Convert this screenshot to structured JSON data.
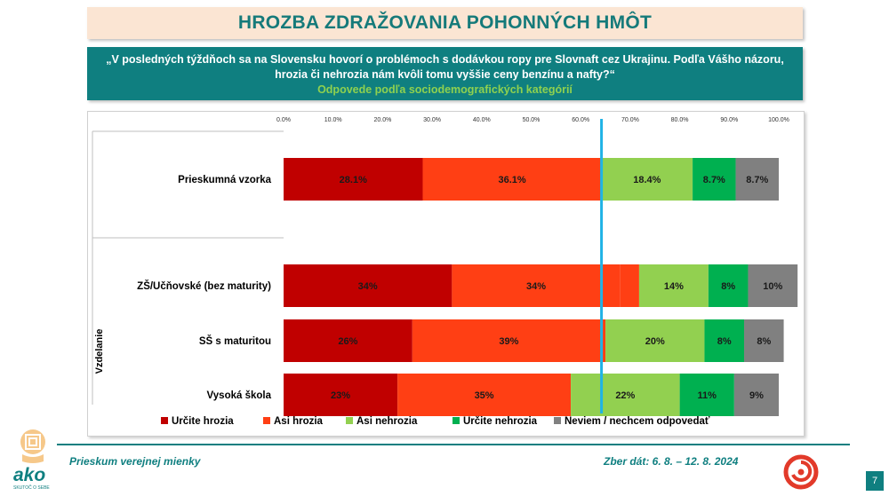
{
  "header": {
    "title": "HROZBA ZDRAŽOVANIA POHONNÝCH HMÔT",
    "question_line1": "„V posledných týždňoch sa na Slovensku hovorí o problémoch s dodávkou ropy pre Slovnaft cez Ukrajinu. Podľa Vášho názoru,",
    "question_line2": "hrozia či nehrozia nám kvôli tomu vyššie ceny benzínu a nafty?“",
    "subtitle": "Odpovede podľa sociodemografických kategórií"
  },
  "chart_data": {
    "type": "bar",
    "orientation": "horizontal",
    "stacked": true,
    "x_ticks": [
      "0.0%",
      "10.0%",
      "20.0%",
      "30.0%",
      "40.0%",
      "50.0%",
      "60.0%",
      "70.0%",
      "80.0%",
      "90.0%",
      "100.0%"
    ],
    "xlim": [
      0,
      100
    ],
    "reference_line": 64.2,
    "group_label": "Vzdelanie",
    "categories": [
      "Prieskumná vzorka",
      "ZŠ/Učňovské (bez maturity)",
      "SŠ s maturitou",
      "Vysoká škola"
    ],
    "series": [
      {
        "name": "Určite hrozia",
        "color": "#c00000",
        "values": [
          28.1,
          34,
          26,
          23
        ],
        "labels": [
          "28.1%",
          "34%",
          "26%",
          "23%"
        ]
      },
      {
        "name": "Asi hrozia",
        "color": "#ff3f14",
        "values": [
          36.1,
          34,
          39,
          35
        ],
        "labels": [
          "36.1%",
          "34%",
          "39%",
          "35%"
        ]
      },
      {
        "name": "Asi nehrozia",
        "color": "#92d050",
        "values": [
          18.4,
          14,
          20,
          22
        ],
        "labels": [
          "18.4%",
          "14%",
          "20%",
          "22%"
        ]
      },
      {
        "name": "Určite nehrozia",
        "color": "#00b050",
        "values": [
          8.7,
          8,
          8,
          11
        ],
        "labels": [
          "8.7%",
          "8%",
          "8%",
          "11%"
        ]
      },
      {
        "name": "Neviem / nechcem odpovedať",
        "color": "#808080",
        "values": [
          8.7,
          10,
          8,
          9
        ],
        "labels": [
          "8.7%",
          "10%",
          "8%",
          "9%"
        ]
      }
    ],
    "gap_segment": {
      "color": "#ff3f14",
      "values": [
        0,
        3.8,
        0,
        0
      ]
    }
  },
  "footer": {
    "left_text": "Prieskum verejnej mienky",
    "right_text": "Zber dát: 6. 8. – 12. 8. 2024",
    "page_number": "7",
    "logo_text": "ako",
    "logo_tagline": "SKUTOČ O SEBE"
  }
}
